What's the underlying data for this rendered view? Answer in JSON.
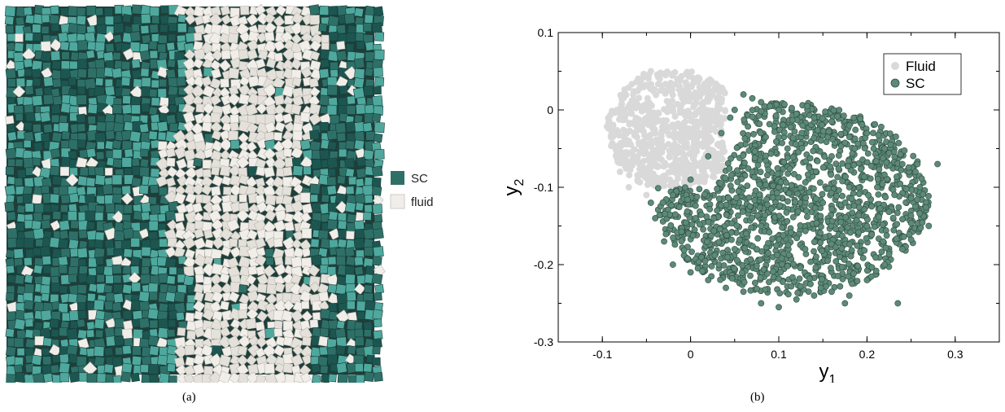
{
  "captions": {
    "a": "(a)",
    "b": "(b)"
  },
  "colors": {
    "sc": "#2e7068",
    "sc_light": "#4fa89d",
    "sc_dark": "#1d5650",
    "fluid": "#f1eee9",
    "fluid_edge": "#b9b5ae",
    "scatter_sc": "#5d8a78",
    "scatter_sc_edge": "#2d4a40",
    "scatter_fluid": "#d9d9d9"
  },
  "chart_data": [
    {
      "panel": "a",
      "type": "other",
      "description_free": true,
      "legend": [
        {
          "label": "SC",
          "color": "#2e7068"
        },
        {
          "label": "fluid",
          "color": "#f1eee9"
        }
      ],
      "fluid_band_x_range": [
        0.45,
        0.82
      ]
    },
    {
      "panel": "b",
      "type": "scatter",
      "xlabel": "y",
      "xlabel_sub": "1",
      "ylabel": "y",
      "ylabel_sub": "2",
      "xlim": [
        -0.15,
        0.35
      ],
      "ylim": [
        -0.3,
        0.1
      ],
      "xticks": [
        -0.1,
        0,
        0.1,
        0.2,
        0.3
      ],
      "xtick_labels": [
        "-0.1",
        "0",
        "0.1",
        "0.2",
        "0.3"
      ],
      "yticks": [
        -0.3,
        -0.2,
        -0.1,
        0,
        0.1
      ],
      "ytick_labels": [
        "-0.3",
        "-0.2",
        "-0.1",
        "0",
        "0.1"
      ],
      "legend_position": "top-right",
      "series": [
        {
          "name": "Fluid",
          "color": "#d9d9d9",
          "points": [
            [
              -0.09,
              -0.02
            ],
            [
              -0.085,
              -0.05
            ],
            [
              -0.08,
              -0.08
            ],
            [
              -0.075,
              0.0
            ],
            [
              -0.07,
              -0.1
            ],
            [
              -0.065,
              0.02
            ],
            [
              -0.06,
              -0.06
            ],
            [
              -0.055,
              0.03
            ],
            [
              -0.05,
              -0.11
            ],
            [
              -0.045,
              0.05
            ],
            [
              -0.04,
              -0.03
            ],
            [
              -0.035,
              0.04
            ],
            [
              -0.03,
              -0.09
            ],
            [
              -0.025,
              0.03
            ],
            [
              -0.02,
              -0.05
            ],
            [
              -0.015,
              0.04
            ],
            [
              -0.01,
              -0.07
            ],
            [
              -0.005,
              0.02
            ],
            [
              0.0,
              0.03
            ],
            [
              0.005,
              -0.02
            ],
            [
              0.01,
              0.04
            ],
            [
              0.015,
              0.01
            ],
            [
              0.02,
              0.03
            ],
            [
              0.025,
              0.02
            ],
            [
              0.03,
              0.015
            ],
            [
              0.035,
              0.01
            ],
            [
              -0.06,
              -0.02
            ],
            [
              -0.04,
              -0.06
            ],
            [
              -0.02,
              0.0
            ],
            [
              0.0,
              -0.03
            ],
            [
              -0.07,
              -0.04
            ],
            [
              -0.05,
              0.0
            ]
          ]
        },
        {
          "name": "SC",
          "color": "#5d8a78",
          "points": [
            [
              0.05,
              0.0
            ],
            [
              0.06,
              0.02
            ],
            [
              0.07,
              0.015
            ],
            [
              0.08,
              0.01
            ],
            [
              0.09,
              0.005
            ],
            [
              0.1,
              0.0
            ],
            [
              0.12,
              -0.005
            ],
            [
              0.14,
              -0.01
            ],
            [
              0.16,
              -0.015
            ],
            [
              0.18,
              -0.02
            ],
            [
              0.2,
              -0.03
            ],
            [
              0.22,
              -0.05
            ],
            [
              0.24,
              -0.07
            ],
            [
              0.255,
              -0.08
            ],
            [
              0.26,
              -0.1
            ],
            [
              0.28,
              -0.07
            ],
            [
              0.27,
              -0.15
            ],
            [
              0.24,
              -0.18
            ],
            [
              0.22,
              -0.2
            ],
            [
              0.2,
              -0.22
            ],
            [
              0.18,
              -0.24
            ],
            [
              0.16,
              -0.235
            ],
            [
              0.14,
              -0.24
            ],
            [
              0.12,
              -0.245
            ],
            [
              0.1,
              -0.255
            ],
            [
              0.08,
              -0.25
            ],
            [
              0.06,
              -0.235
            ],
            [
              0.04,
              -0.23
            ],
            [
              0.02,
              -0.22
            ],
            [
              0.0,
              -0.21
            ],
            [
              -0.02,
              -0.2
            ],
            [
              -0.03,
              -0.17
            ],
            [
              -0.04,
              -0.14
            ],
            [
              -0.045,
              -0.12
            ],
            [
              -0.02,
              -0.11
            ],
            [
              0.0,
              -0.09
            ],
            [
              0.02,
              -0.06
            ],
            [
              0.035,
              -0.03
            ],
            [
              0.045,
              -0.01
            ],
            [
              0.1,
              -0.1
            ],
            [
              0.15,
              -0.12
            ],
            [
              0.08,
              -0.15
            ],
            [
              0.13,
              -0.18
            ],
            [
              0.05,
              -0.18
            ],
            [
              0.18,
              -0.1
            ],
            [
              0.2,
              -0.15
            ],
            [
              0.03,
              -0.13
            ],
            [
              0.11,
              -0.05
            ],
            [
              0.16,
              -0.06
            ],
            [
              0.07,
              -0.08
            ],
            [
              0.235,
              -0.25
            ],
            [
              0.175,
              -0.25
            ]
          ]
        }
      ]
    }
  ]
}
